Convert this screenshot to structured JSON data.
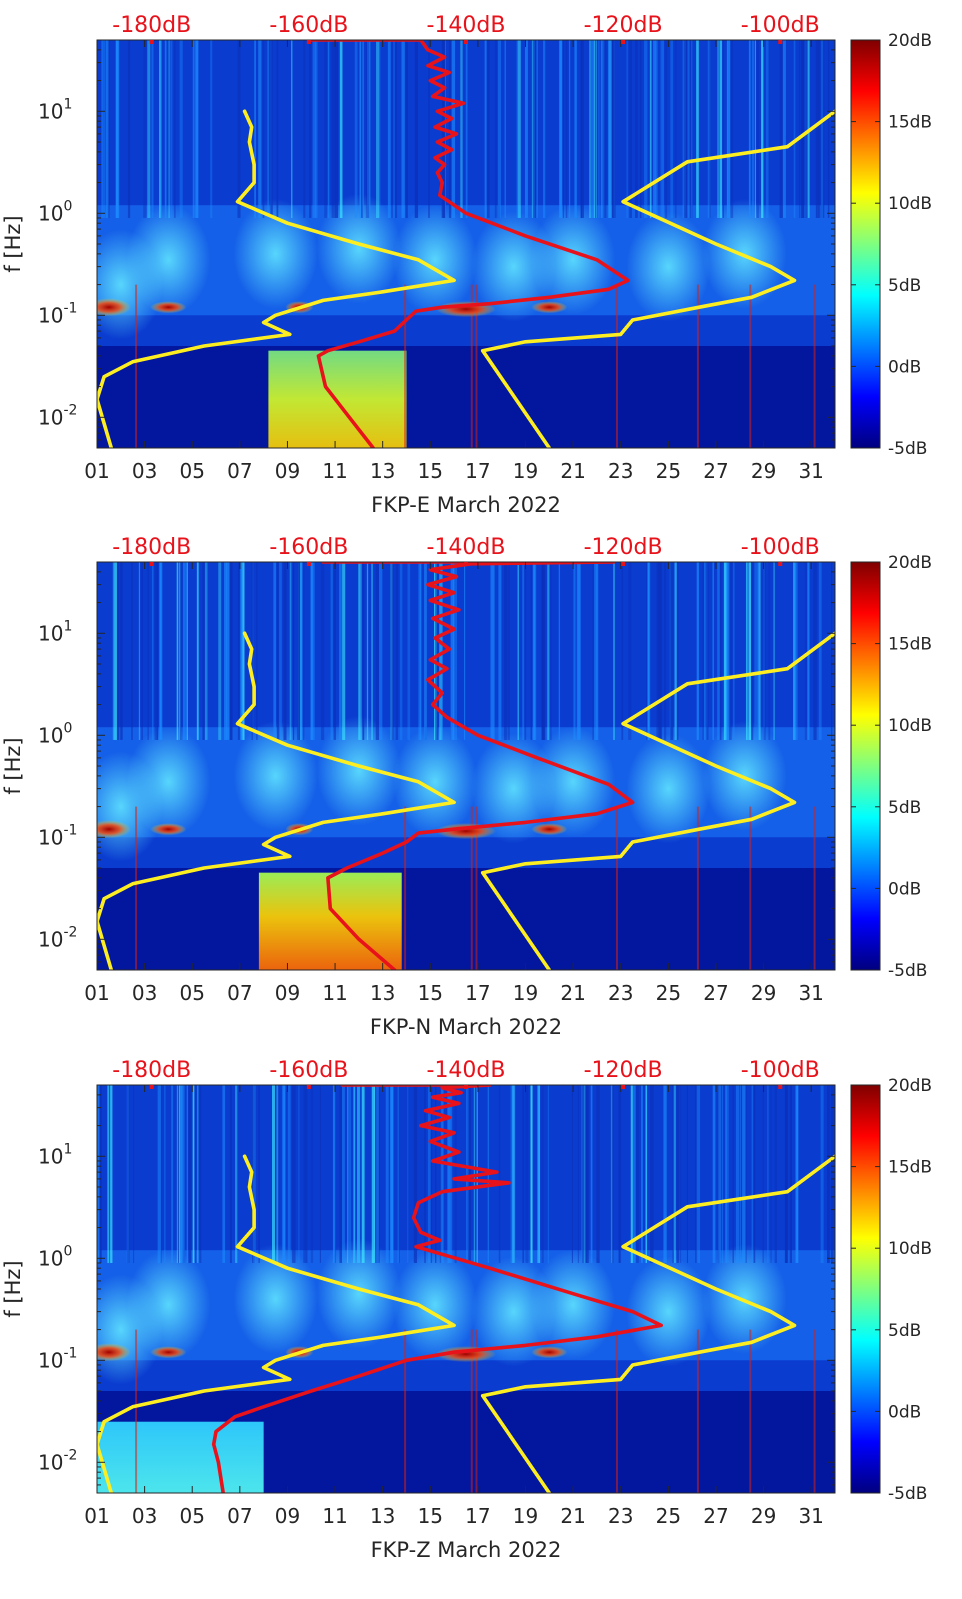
{
  "chart_data": [
    {
      "type": "heatmap",
      "station": "FKP-E",
      "xlabel": "FKP-E March 2022",
      "ylabel": "f [Hz]",
      "x_ticks": [
        "01",
        "03",
        "05",
        "07",
        "09",
        "11",
        "13",
        "15",
        "17",
        "19",
        "21",
        "23",
        "25",
        "27",
        "29",
        "31"
      ],
      "x_range_days": [
        1,
        32
      ],
      "y_scale": "log",
      "y_range_hz": [
        0.005,
        50
      ],
      "y_ticks": [
        {
          "base": "10",
          "exp": "-2",
          "value": 0.01
        },
        {
          "base": "10",
          "exp": "-1",
          "value": 0.1
        },
        {
          "base": "10",
          "exp": "0",
          "value": 1
        },
        {
          "base": "10",
          "exp": "1",
          "value": 10
        }
      ],
      "colorbar": {
        "min_db": -5,
        "max_db": 20,
        "ticks": [
          "-5dB",
          "0dB",
          "5dB",
          "10dB",
          "15dB",
          "20dB"
        ]
      },
      "top_axis_ticks": [
        {
          "label": "-180dB",
          "day": 3.3
        },
        {
          "label": "-160dB",
          "day": 9.9
        },
        {
          "label": "-140dB",
          "day": 16.5
        },
        {
          "label": "-120dB",
          "day": 23.1
        },
        {
          "label": "-100dB",
          "day": 29.7
        }
      ],
      "series": [
        {
          "color": "#e8121b",
          "points": [
            [
              10.0,
              50
            ],
            [
              14.6,
              50
            ],
            [
              14.9,
              40
            ],
            [
              15.6,
              34
            ],
            [
              14.9,
              28
            ],
            [
              15.8,
              24
            ],
            [
              15.0,
              20
            ],
            [
              15.6,
              17
            ],
            [
              15.1,
              14
            ],
            [
              16.4,
              12
            ],
            [
              15.3,
              10
            ],
            [
              15.9,
              8.5
            ],
            [
              15.2,
              7
            ],
            [
              16.1,
              6
            ],
            [
              15.3,
              5
            ],
            [
              15.9,
              4.2
            ],
            [
              15.2,
              3.5
            ],
            [
              15.6,
              3
            ],
            [
              15.3,
              2.5
            ],
            [
              15.5,
              2
            ],
            [
              15.4,
              1.5
            ],
            [
              16.5,
              1.0
            ],
            [
              19.0,
              0.6
            ],
            [
              22.0,
              0.35
            ],
            [
              23.3,
              0.22
            ],
            [
              22.5,
              0.18
            ],
            [
              20.0,
              0.15
            ],
            [
              17.5,
              0.13
            ],
            [
              15.5,
              0.12
            ],
            [
              14.4,
              0.11
            ],
            [
              14.1,
              0.095
            ],
            [
              13.5,
              0.07
            ],
            [
              12.0,
              0.055
            ],
            [
              10.7,
              0.045
            ],
            [
              10.3,
              0.04
            ],
            [
              10.6,
              0.02
            ],
            [
              11.6,
              0.01
            ],
            [
              12.6,
              0.005
            ]
          ]
        },
        {
          "color": "#fdee21",
          "points": [
            [
              7.2,
              10
            ],
            [
              7.5,
              7
            ],
            [
              7.4,
              5
            ],
            [
              7.6,
              3
            ],
            [
              7.6,
              2
            ],
            [
              6.9,
              1.3
            ],
            [
              9.0,
              0.8
            ],
            [
              12.0,
              0.5
            ],
            [
              14.5,
              0.35
            ],
            [
              16.0,
              0.22
            ],
            [
              13.0,
              0.17
            ],
            [
              10.5,
              0.14
            ],
            [
              8.5,
              0.1
            ],
            [
              8.0,
              0.085
            ],
            [
              9.1,
              0.065
            ],
            [
              5.5,
              0.05
            ],
            [
              2.5,
              0.035
            ],
            [
              1.3,
              0.025
            ],
            [
              1.0,
              0.015
            ],
            [
              1.6,
              0.005
            ]
          ]
        },
        {
          "color": "#fdee21",
          "points": [
            [
              32,
              10
            ],
            [
              30.0,
              4.5
            ],
            [
              25.8,
              3.2
            ],
            [
              23.1,
              1.3
            ],
            [
              27.0,
              0.5
            ],
            [
              29.3,
              0.3
            ],
            [
              30.3,
              0.22
            ],
            [
              28.5,
              0.15
            ],
            [
              26.3,
              0.12
            ],
            [
              23.5,
              0.09
            ],
            [
              23.0,
              0.065
            ],
            [
              19.0,
              0.055
            ],
            [
              17.2,
              0.045
            ],
            [
              20.0,
              0.005
            ]
          ]
        }
      ]
    },
    {
      "type": "heatmap",
      "station": "FKP-N",
      "xlabel": "FKP-N March 2022",
      "ylabel": "f [Hz]",
      "x_ticks": [
        "01",
        "03",
        "05",
        "07",
        "09",
        "11",
        "13",
        "15",
        "17",
        "19",
        "21",
        "23",
        "25",
        "27",
        "29",
        "31"
      ],
      "x_range_days": [
        1,
        32
      ],
      "y_scale": "log",
      "y_range_hz": [
        0.005,
        50
      ],
      "y_ticks": [
        {
          "base": "10",
          "exp": "-2",
          "value": 0.01
        },
        {
          "base": "10",
          "exp": "-1",
          "value": 0.1
        },
        {
          "base": "10",
          "exp": "0",
          "value": 1
        },
        {
          "base": "10",
          "exp": "1",
          "value": 10
        }
      ],
      "colorbar": {
        "min_db": -5,
        "max_db": 20,
        "ticks": [
          "-5dB",
          "0dB",
          "5dB",
          "10dB",
          "15dB",
          "20dB"
        ]
      },
      "top_axis_ticks": [
        {
          "label": "-180dB",
          "day": 3.3
        },
        {
          "label": "-160dB",
          "day": 9.9
        },
        {
          "label": "-140dB",
          "day": 16.5
        },
        {
          "label": "-120dB",
          "day": 23.1
        },
        {
          "label": "-100dB",
          "day": 29.7
        }
      ],
      "series": [
        {
          "color": "#e8121b",
          "points": [
            [
              10.5,
              50
            ],
            [
              22.7,
              50
            ],
            [
              16.7,
              48
            ],
            [
              15.0,
              42
            ],
            [
              16.1,
              36
            ],
            [
              14.9,
              30
            ],
            [
              16.0,
              25
            ],
            [
              15.0,
              21
            ],
            [
              16.2,
              17
            ],
            [
              15.1,
              14
            ],
            [
              16.0,
              11
            ],
            [
              15.2,
              9
            ],
            [
              15.8,
              7
            ],
            [
              15.0,
              5.5
            ],
            [
              15.7,
              4.5
            ],
            [
              14.9,
              3.5
            ],
            [
              15.5,
              2.6
            ],
            [
              15.1,
              2
            ],
            [
              15.7,
              1.5
            ],
            [
              17.0,
              1.0
            ],
            [
              19.5,
              0.6
            ],
            [
              22.5,
              0.33
            ],
            [
              23.5,
              0.22
            ],
            [
              22.0,
              0.17
            ],
            [
              19.0,
              0.14
            ],
            [
              16.0,
              0.12
            ],
            [
              14.5,
              0.11
            ],
            [
              14.0,
              0.09
            ],
            [
              13.0,
              0.07
            ],
            [
              11.5,
              0.05
            ],
            [
              10.7,
              0.04
            ],
            [
              10.8,
              0.02
            ],
            [
              12.0,
              0.01
            ],
            [
              13.5,
              0.005
            ]
          ]
        },
        {
          "color": "#fdee21",
          "points": [
            [
              7.2,
              10
            ],
            [
              7.5,
              7
            ],
            [
              7.4,
              5
            ],
            [
              7.6,
              3
            ],
            [
              7.6,
              2
            ],
            [
              6.9,
              1.3
            ],
            [
              9.0,
              0.8
            ],
            [
              12.0,
              0.5
            ],
            [
              14.5,
              0.35
            ],
            [
              16.0,
              0.22
            ],
            [
              13.0,
              0.17
            ],
            [
              10.5,
              0.14
            ],
            [
              8.5,
              0.1
            ],
            [
              8.0,
              0.085
            ],
            [
              9.1,
              0.065
            ],
            [
              5.5,
              0.05
            ],
            [
              2.5,
              0.035
            ],
            [
              1.3,
              0.025
            ],
            [
              1.0,
              0.015
            ],
            [
              1.6,
              0.005
            ]
          ]
        },
        {
          "color": "#fdee21",
          "points": [
            [
              32,
              10
            ],
            [
              30.0,
              4.5
            ],
            [
              25.8,
              3.2
            ],
            [
              23.1,
              1.3
            ],
            [
              27.0,
              0.5
            ],
            [
              29.3,
              0.3
            ],
            [
              30.3,
              0.22
            ],
            [
              28.5,
              0.15
            ],
            [
              26.3,
              0.12
            ],
            [
              23.5,
              0.09
            ],
            [
              23.0,
              0.065
            ],
            [
              19.0,
              0.055
            ],
            [
              17.2,
              0.045
            ],
            [
              20.0,
              0.005
            ]
          ]
        }
      ]
    },
    {
      "type": "heatmap",
      "station": "FKP-Z",
      "xlabel": "FKP-Z March 2022",
      "ylabel": "f [Hz]",
      "x_ticks": [
        "01",
        "03",
        "05",
        "07",
        "09",
        "11",
        "13",
        "15",
        "17",
        "19",
        "21",
        "23",
        "25",
        "27",
        "29",
        "31"
      ],
      "x_range_days": [
        1,
        32
      ],
      "y_scale": "log",
      "y_range_hz": [
        0.005,
        50
      ],
      "y_ticks": [
        {
          "base": "10",
          "exp": "-2",
          "value": 0.01
        },
        {
          "base": "10",
          "exp": "-1",
          "value": 0.1
        },
        {
          "base": "10",
          "exp": "0",
          "value": 1
        },
        {
          "base": "10",
          "exp": "1",
          "value": 10
        }
      ],
      "colorbar": {
        "min_db": -5,
        "max_db": 20,
        "ticks": [
          "-5dB",
          "0dB",
          "5dB",
          "10dB",
          "15dB",
          "20dB"
        ]
      },
      "top_axis_ticks": [
        {
          "label": "-180dB",
          "day": 3.3
        },
        {
          "label": "-160dB",
          "day": 9.9
        },
        {
          "label": "-140dB",
          "day": 16.5
        },
        {
          "label": "-120dB",
          "day": 23.1
        },
        {
          "label": "-100dB",
          "day": 29.7
        }
      ],
      "series": [
        {
          "color": "#e8121b",
          "points": [
            [
              11.3,
              50
            ],
            [
              17.5,
              50
            ],
            [
              15.5,
              47
            ],
            [
              16.3,
              42
            ],
            [
              15.1,
              38
            ],
            [
              16.2,
              33
            ],
            [
              14.8,
              28
            ],
            [
              15.8,
              24
            ],
            [
              14.6,
              20
            ],
            [
              16.0,
              17
            ],
            [
              15.0,
              14
            ],
            [
              16.2,
              11
            ],
            [
              15.1,
              9
            ],
            [
              17.8,
              7
            ],
            [
              16.0,
              6
            ],
            [
              18.3,
              5.5
            ],
            [
              15.5,
              4.5
            ],
            [
              14.5,
              3.5
            ],
            [
              14.3,
              2.5
            ],
            [
              14.6,
              1.8
            ],
            [
              15.4,
              1.5
            ],
            [
              14.4,
              1.3
            ],
            [
              17.5,
              0.8
            ],
            [
              21.0,
              0.45
            ],
            [
              23.5,
              0.3
            ],
            [
              24.7,
              0.22
            ],
            [
              22.0,
              0.17
            ],
            [
              19.0,
              0.14
            ],
            [
              16.0,
              0.12
            ],
            [
              14.0,
              0.1
            ],
            [
              12.0,
              0.07
            ],
            [
              10.0,
              0.05
            ],
            [
              8.0,
              0.035
            ],
            [
              6.8,
              0.028
            ],
            [
              6.0,
              0.02
            ],
            [
              5.9,
              0.015
            ],
            [
              6.1,
              0.01
            ],
            [
              6.3,
              0.005
            ]
          ]
        },
        {
          "color": "#fdee21",
          "points": [
            [
              7.2,
              10
            ],
            [
              7.5,
              7
            ],
            [
              7.4,
              5
            ],
            [
              7.6,
              3
            ],
            [
              7.6,
              2
            ],
            [
              6.9,
              1.3
            ],
            [
              9.0,
              0.8
            ],
            [
              12.0,
              0.5
            ],
            [
              14.5,
              0.35
            ],
            [
              16.0,
              0.22
            ],
            [
              13.0,
              0.17
            ],
            [
              10.5,
              0.14
            ],
            [
              8.5,
              0.1
            ],
            [
              8.0,
              0.085
            ],
            [
              9.1,
              0.065
            ],
            [
              5.5,
              0.05
            ],
            [
              2.5,
              0.035
            ],
            [
              1.3,
              0.025
            ],
            [
              1.0,
              0.015
            ],
            [
              1.6,
              0.005
            ]
          ]
        },
        {
          "color": "#fdee21",
          "points": [
            [
              32,
              10
            ],
            [
              30.0,
              4.5
            ],
            [
              25.8,
              3.2
            ],
            [
              23.1,
              1.3
            ],
            [
              27.0,
              0.5
            ],
            [
              29.3,
              0.3
            ],
            [
              30.3,
              0.22
            ],
            [
              28.5,
              0.15
            ],
            [
              26.3,
              0.12
            ],
            [
              23.5,
              0.09
            ],
            [
              23.0,
              0.065
            ],
            [
              19.0,
              0.055
            ],
            [
              17.2,
              0.045
            ],
            [
              20.0,
              0.005
            ]
          ]
        }
      ]
    }
  ]
}
